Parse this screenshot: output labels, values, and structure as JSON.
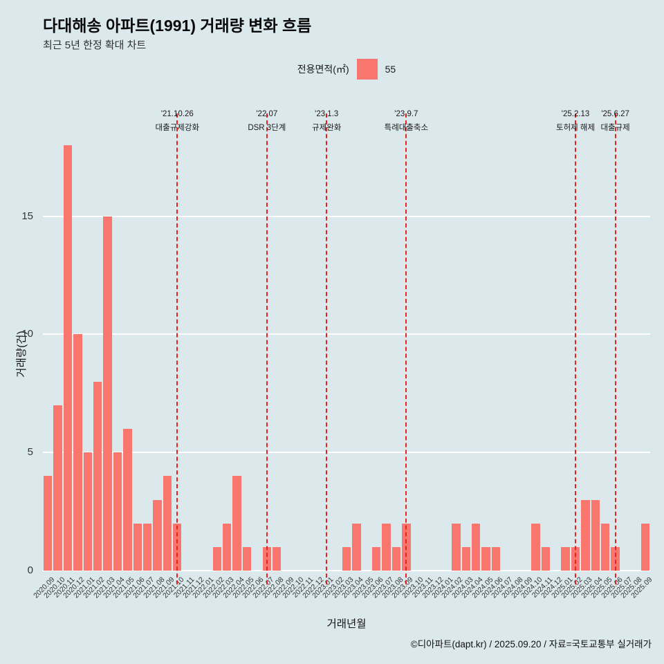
{
  "page": {
    "title": "다대해송 아파트(1991) 거래량 변화 흐름",
    "subtitle": "최근 5년 한정 확대 차트",
    "footer": "©디아파트(dapt.kr) / 2025.09.20 / 자료=국토교통부 실거래가"
  },
  "legend": {
    "title": "전용면적(㎡)",
    "items": [
      {
        "label": "55",
        "color": "#f8766d"
      }
    ]
  },
  "chart_data": {
    "type": "bar",
    "title": "다대해송 아파트(1991) 거래량 변화 흐름",
    "xlabel": "거래년월",
    "ylabel": "거래량(건)",
    "ylim": [
      0,
      18.3
    ],
    "yticks": [
      0,
      5,
      10,
      15
    ],
    "grid": true,
    "legend_position": "top",
    "background": "#dbe8ec",
    "bar_color": "#f8766d",
    "annotation_color": "#e8231f",
    "series_name": "55",
    "categories": [
      "2020.09",
      "2020.10",
      "2020.11",
      "2020.12",
      "2021.01",
      "2021.02",
      "2021.03",
      "2021.04",
      "2021.05",
      "2021.06",
      "2021.07",
      "2021.08",
      "2021.09",
      "2021.10",
      "2021.11",
      "2021.12",
      "2022.01",
      "2022.02",
      "2022.03",
      "2022.04",
      "2022.05",
      "2022.06",
      "2022.07",
      "2022.08",
      "2022.09",
      "2022.10",
      "2022.11",
      "2022.12",
      "2023.01",
      "2023.02",
      "2023.03",
      "2023.04",
      "2023.05",
      "2023.06",
      "2023.07",
      "2023.08",
      "2023.09",
      "2023.10",
      "2023.11",
      "2023.12",
      "2024.01",
      "2024.02",
      "2024.03",
      "2024.04",
      "2024.05",
      "2024.06",
      "2024.07",
      "2024.08",
      "2024.09",
      "2024.10",
      "2024.11",
      "2024.12",
      "2025.01",
      "2025.02",
      "2025.03",
      "2025.04",
      "2025.05",
      "2025.06",
      "2025.07",
      "2025.08",
      "2025.09"
    ],
    "values": [
      4,
      7,
      18,
      10,
      5,
      8,
      15,
      5,
      6,
      2,
      2,
      3,
      4,
      2,
      0,
      0,
      0,
      1,
      2,
      4,
      1,
      0,
      1,
      1,
      0,
      0,
      0,
      0,
      0,
      0,
      1,
      2,
      0,
      1,
      2,
      1,
      2,
      0,
      0,
      0,
      0,
      2,
      1,
      2,
      1,
      1,
      0,
      0,
      0,
      2,
      1,
      0,
      1,
      1,
      3,
      3,
      2,
      1,
      0,
      0,
      2
    ],
    "annotations": [
      {
        "month": "2021.10",
        "date": "'21.10.26",
        "label": "대출규제강화"
      },
      {
        "month": "2022.07",
        "date": "'22.07",
        "label": "DSR 3단계"
      },
      {
        "month": "2023.01",
        "date": "'23.1.3",
        "label": "규제완화"
      },
      {
        "month": "2023.09",
        "date": "'23.9.7",
        "label": "특례대출축소"
      },
      {
        "month": "2025.02",
        "date": "'25.2.13",
        "label": "토허제 해제"
      },
      {
        "month": "2025.06",
        "date": "'25.6.27",
        "label": "대출규제"
      }
    ]
  }
}
